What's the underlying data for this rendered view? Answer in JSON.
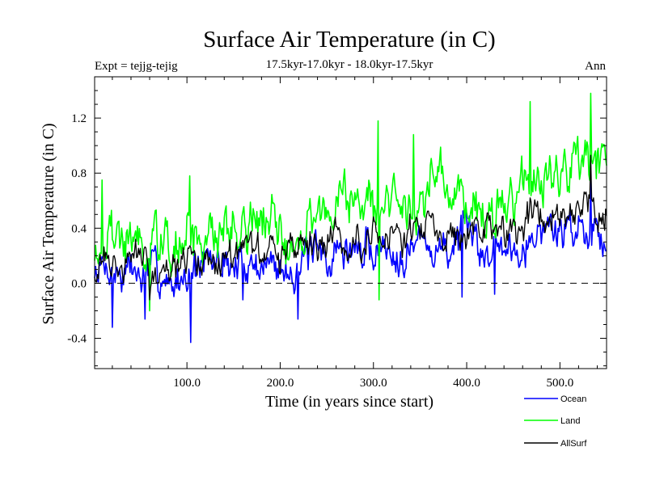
{
  "chart_data": {
    "type": "line",
    "title": "Surface Air Temperature (in C)",
    "subtitle": "17.5kyr-17.0kyr - 18.0kyr-17.5kyr",
    "expt_label": "Expt = tejjg-tejig",
    "season_label": "Ann",
    "xlabel": "Time (in years since start)",
    "ylabel": "Surface Air Temperature (in C)",
    "xlim": [
      1,
      550
    ],
    "ylim": [
      -0.62,
      1.5
    ],
    "x_ticks": [
      100,
      200,
      300,
      400,
      500
    ],
    "x_tick_labels": [
      "100.0",
      "200.0",
      "300.0",
      "400.0",
      "500.0"
    ],
    "y_ticks": [
      -0.4,
      0.0,
      0.4,
      0.8,
      1.2
    ],
    "y_tick_labels": [
      "-0.4",
      "0.0",
      "0.4",
      "0.8",
      "1.2"
    ],
    "reference_line": 0.0,
    "series": [
      {
        "name": "Ocean",
        "color": "#0000ff",
        "trend": [
          [
            0,
            0.05
          ],
          [
            100,
            0.06
          ],
          [
            150,
            0.17
          ],
          [
            200,
            0.14
          ],
          [
            250,
            0.22
          ],
          [
            300,
            0.26
          ],
          [
            350,
            0.3
          ],
          [
            400,
            0.27
          ],
          [
            450,
            0.28
          ],
          [
            470,
            0.38
          ],
          [
            550,
            0.42
          ]
        ],
        "noise": 0.2,
        "seed": 7,
        "events": [
          [
            20,
            -0.32
          ],
          [
            55,
            -0.26
          ],
          [
            104,
            -0.43
          ],
          [
            160,
            -0.12
          ],
          [
            219,
            -0.26
          ],
          [
            395,
            -0.1
          ],
          [
            430,
            -0.08
          ],
          [
            533,
            0.74
          ]
        ]
      },
      {
        "name": "Land",
        "color": "#00ff00",
        "trend": [
          [
            0,
            0.3
          ],
          [
            100,
            0.3
          ],
          [
            150,
            0.48
          ],
          [
            200,
            0.42
          ],
          [
            250,
            0.55
          ],
          [
            300,
            0.6
          ],
          [
            350,
            0.64
          ],
          [
            400,
            0.57
          ],
          [
            450,
            0.6
          ],
          [
            470,
            0.75
          ],
          [
            550,
            0.82
          ]
        ],
        "noise": 0.27,
        "seed": 19,
        "events": [
          [
            9,
            0.75
          ],
          [
            60,
            -0.2
          ],
          [
            103,
            0.78
          ],
          [
            305,
            1.18
          ],
          [
            306,
            -0.12
          ],
          [
            343,
            1.08
          ],
          [
            468,
            1.32
          ],
          [
            533,
            1.38
          ],
          [
            548,
            1.0
          ]
        ]
      },
      {
        "name": "AllSurf",
        "color": "#000000",
        "trend": [
          [
            0,
            0.12
          ],
          [
            100,
            0.13
          ],
          [
            150,
            0.25
          ],
          [
            200,
            0.22
          ],
          [
            250,
            0.32
          ],
          [
            300,
            0.38
          ],
          [
            350,
            0.42
          ],
          [
            400,
            0.36
          ],
          [
            450,
            0.38
          ],
          [
            470,
            0.52
          ],
          [
            550,
            0.58
          ]
        ],
        "noise": 0.17,
        "seed": 31,
        "events": [
          [
            60,
            -0.12
          ],
          [
            533,
            0.93
          ],
          [
            468,
            0.62
          ]
        ]
      }
    ]
  }
}
